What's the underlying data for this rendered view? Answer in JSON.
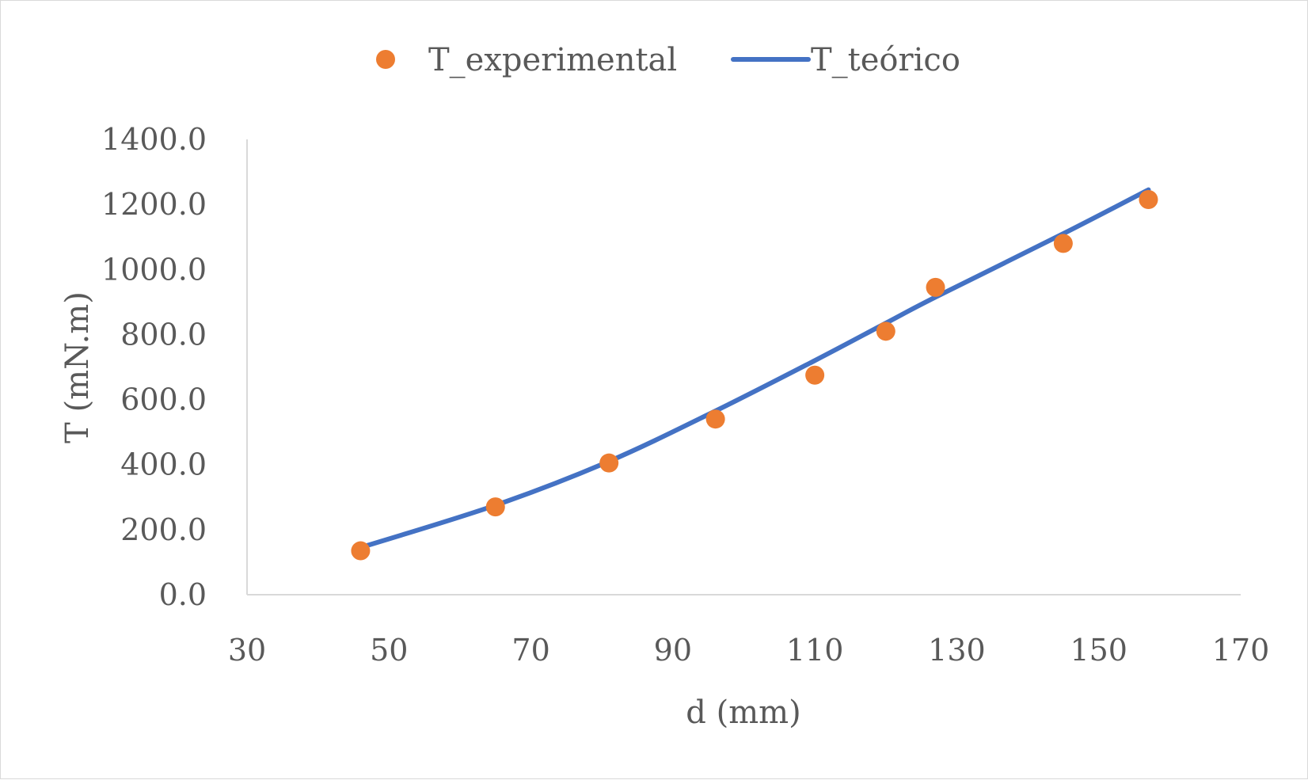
{
  "chart_data": {
    "type": "scatter",
    "title": "",
    "xlabel": "d (mm)",
    "ylabel": "T (mN.m)",
    "xlim": [
      30,
      170
    ],
    "ylim": [
      0,
      1400
    ],
    "x_ticks": [
      "30",
      "50",
      "70",
      "90",
      "110",
      "130",
      "150",
      "170"
    ],
    "y_ticks": [
      "0.0",
      "200.0",
      "400.0",
      "600.0",
      "800.0",
      "1000.0",
      "1200.0",
      "1400.0"
    ],
    "grid": false,
    "legend_position": "top",
    "series": [
      {
        "name": "T_experimental",
        "kind": "scatter",
        "color": "#ED7D31",
        "x": [
          46,
          65,
          81,
          96,
          110,
          120,
          127,
          145,
          157
        ],
        "y": [
          135,
          270,
          405,
          540,
          675,
          810,
          945,
          1080,
          1215
        ]
      },
      {
        "name": "T_teórico",
        "kind": "line",
        "color": "#4472C4",
        "x": [
          46,
          65,
          81,
          96,
          110,
          120,
          127,
          145,
          157
        ],
        "y": [
          145,
          275,
          410,
          565,
          720,
          835,
          915,
          1110,
          1245
        ]
      }
    ]
  }
}
